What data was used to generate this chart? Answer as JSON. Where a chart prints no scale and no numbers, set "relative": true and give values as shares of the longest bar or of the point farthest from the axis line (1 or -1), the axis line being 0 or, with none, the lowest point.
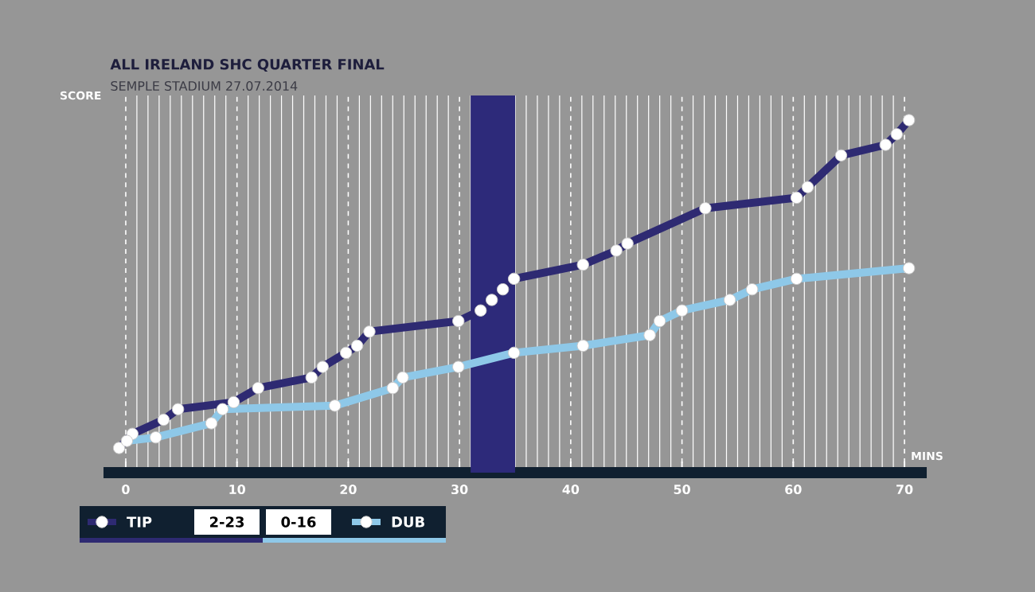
{
  "chart_data": {
    "type": "line",
    "title": "ALL IRELAND SHC QUARTER FINAL",
    "subtitle": "SEMPLE STADIUM 27.07.2014",
    "xlabel": "MINS",
    "ylabel": "SCORE",
    "relative": true,
    "xlim": [
      -2,
      72
    ],
    "xticks": [
      0,
      10,
      20,
      30,
      40,
      50,
      60,
      70
    ],
    "grid": "x",
    "marker": "circle",
    "line_style": "solid",
    "legend": "bottom left",
    "bands": [
      {
        "axis": "x",
        "from": 31,
        "to": 35,
        "color": "#2d2a7a"
      }
    ],
    "annotations": [
      "2-23",
      "0-16"
    ],
    "series": [
      {
        "name": "TIP",
        "color": "#2e2a72",
        "x": [
          -0.6,
          0.6,
          3.4,
          4.7,
          9.7,
          11.9,
          16.7,
          17.7,
          19.8,
          20.8,
          21.9,
          29.9,
          31.9,
          32.9,
          33.9,
          34.9,
          41.1,
          44.1,
          45.1,
          52.1,
          60.3,
          61.3,
          64.3,
          68.3,
          69.3,
          70.4
        ],
        "values": [
          0.07,
          0.11,
          0.15,
          0.18,
          0.2,
          0.24,
          0.27,
          0.3,
          0.34,
          0.36,
          0.4,
          0.43,
          0.46,
          0.49,
          0.52,
          0.55,
          0.59,
          0.63,
          0.65,
          0.75,
          0.78,
          0.81,
          0.9,
          0.93,
          0.96,
          1.0
        ]
      },
      {
        "name": "DUB",
        "color": "#8ec8e8",
        "x": [
          0.1,
          2.7,
          7.7,
          8.7,
          18.8,
          24.0,
          24.9,
          29.9,
          34.9,
          41.1,
          47.1,
          48.0,
          50.0,
          54.3,
          56.3,
          60.3,
          70.4
        ],
        "values": [
          0.09,
          0.1,
          0.14,
          0.18,
          0.19,
          0.24,
          0.27,
          0.3,
          0.34,
          0.36,
          0.39,
          0.43,
          0.46,
          0.49,
          0.52,
          0.55,
          0.58
        ]
      }
    ]
  }
}
